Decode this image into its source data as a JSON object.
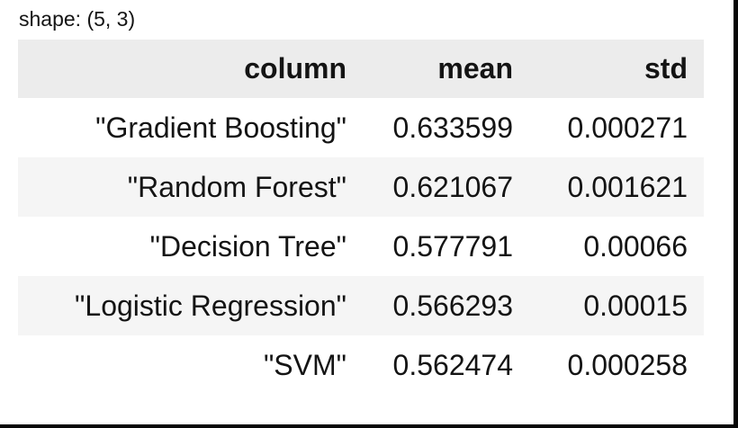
{
  "shape_label": "shape: (5, 3)",
  "table": {
    "headers": [
      "column",
      "mean",
      "std"
    ],
    "rows": [
      {
        "column": "\"Gradient Boosting\"",
        "mean": "0.633599",
        "std": "0.000271"
      },
      {
        "column": "\"Random Forest\"",
        "mean": "0.621067",
        "std": "0.001621"
      },
      {
        "column": "\"Decision Tree\"",
        "mean": "0.577791",
        "std": "0.00066"
      },
      {
        "column": "\"Logistic Regression\"",
        "mean": "0.566293",
        "std": "0.00015"
      },
      {
        "column": "\"SVM\"",
        "mean": "0.562474",
        "std": "0.000258"
      }
    ]
  },
  "colors": {
    "header_bg": "#ececec",
    "row_stripe_bg": "#f5f5f5",
    "text": "#141414",
    "edge": "#060606"
  }
}
